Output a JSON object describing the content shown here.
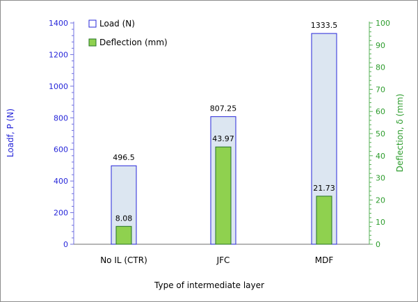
{
  "chart_data": {
    "type": "bar",
    "categories": [
      "No IL (CTR)",
      "JFC",
      "MDF"
    ],
    "xlabel": "Type of intermediate layer",
    "ylabel": "Loadf, P (N)",
    "y2label": "Deflection, δ (mm)",
    "ylim": [
      0,
      1400
    ],
    "y2lim": [
      0,
      100
    ],
    "yticks": [
      "0",
      "200",
      "400",
      "600",
      "800",
      "1000",
      "1200",
      "1400"
    ],
    "y2ticks": [
      "0",
      "10",
      "20",
      "30",
      "40",
      "50",
      "60",
      "70",
      "80",
      "90",
      "100"
    ],
    "legend_position": "top-left",
    "grid": false,
    "series": [
      {
        "name": "Load (N)",
        "axis": "left",
        "values": [
          496.5,
          807.25,
          1333.5
        ],
        "labels": [
          "496.5",
          "807.25",
          "1333.5"
        ],
        "fill": "#dce6f1",
        "stroke": "#2626d9"
      },
      {
        "name": "Deflection (mm)",
        "axis": "right",
        "values": [
          8.08,
          43.97,
          21.73
        ],
        "labels": [
          "8.08",
          "43.97",
          "21.73"
        ],
        "fill": "#8fd14f",
        "stroke": "#267326"
      }
    ],
    "colors": {
      "left_axis": "#2626d9",
      "right_axis": "#2c9c2c",
      "axis_line_left": "#6f6fe0",
      "axis_line_right": "#56b056"
    }
  }
}
